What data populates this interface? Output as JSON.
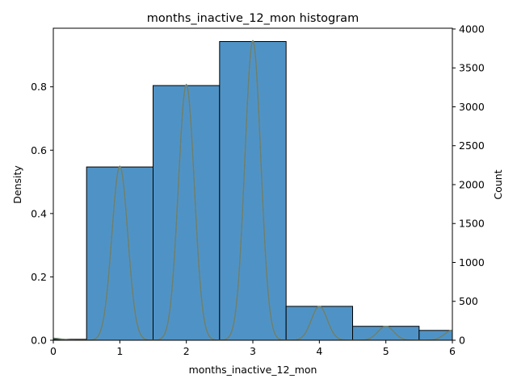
{
  "chart_data": {
    "type": "bar",
    "title": "months_inactive_12_mon histogram",
    "xlabel": "months_inactive_12_mon",
    "ylabel_left": "Density",
    "ylabel_right": "Count",
    "xlim": [
      0,
      6
    ],
    "ylim_left": [
      0,
      0.985
    ],
    "ylim_right": [
      0,
      4010
    ],
    "xticks": [
      "0",
      "1",
      "2",
      "3",
      "4",
      "5",
      "6"
    ],
    "yticks_left": [
      "0.0",
      "0.2",
      "0.4",
      "0.6",
      "0.8"
    ],
    "yticks_right": [
      "0",
      "500",
      "1000",
      "1500",
      "2000",
      "2500",
      "3000",
      "3500",
      "4000"
    ],
    "bins": [
      {
        "left": -0.5,
        "right": 0.5,
        "density": 0.0029,
        "count": 12
      },
      {
        "left": 0.5,
        "right": 1.5,
        "density": 0.547,
        "count": 2230
      },
      {
        "left": 1.5,
        "right": 2.5,
        "density": 0.804,
        "count": 3280
      },
      {
        "left": 2.5,
        "right": 3.5,
        "density": 0.943,
        "count": 3846
      },
      {
        "left": 3.5,
        "right": 4.5,
        "density": 0.107,
        "count": 435
      },
      {
        "left": 4.5,
        "right": 5.5,
        "density": 0.044,
        "count": 178
      },
      {
        "left": 5.5,
        "right": 6.5,
        "density": 0.031,
        "count": 124
      }
    ],
    "kde_peaks": [
      {
        "x": 0,
        "density": 0.006
      },
      {
        "x": 1,
        "density": 0.549
      },
      {
        "x": 2,
        "density": 0.807
      },
      {
        "x": 3,
        "density": 0.945
      },
      {
        "x": 4,
        "density": 0.107
      },
      {
        "x": 5,
        "density": 0.044
      },
      {
        "x": 6,
        "density": 0.031
      }
    ],
    "kde_bandwidth": 0.12,
    "colors": {
      "bar_fill": "#4f93c6",
      "bar_edge": "#000000",
      "kde_line": "#e08a2a",
      "kde_overlay": "#4f7f86"
    }
  }
}
